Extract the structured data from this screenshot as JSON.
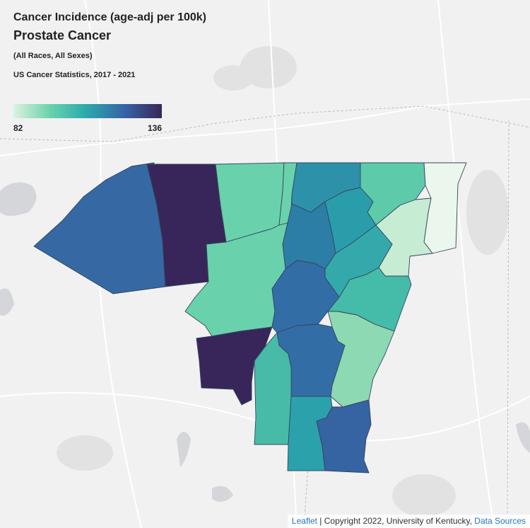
{
  "title": {
    "line1": "Cancer Incidence (age-adj per 100k)",
    "line2": "Prostate Cancer",
    "line3": "(All Races, All Sexes)",
    "line4": "US Cancer Statistics, 2017 - 2021"
  },
  "legend": {
    "min": "82",
    "max": "136",
    "colors": [
      "#dcf2e1",
      "#69d2ac",
      "#2aa7ac",
      "#3763a5",
      "#38265a"
    ]
  },
  "attribution": {
    "leaflet": "Leaflet",
    "separator": " | ",
    "copyright": "Copyright 2022, University of Kentucky, ",
    "sources": "Data Sources"
  },
  "counties": [
    {
      "id": "c01",
      "color": "#38265a"
    },
    {
      "id": "c02",
      "color": "#3669a3"
    },
    {
      "id": "c03",
      "color": "#69d2ac"
    },
    {
      "id": "c04",
      "color": "#69d2ac"
    },
    {
      "id": "c05",
      "color": "#69d2ac"
    },
    {
      "id": "c06",
      "color": "#2c91a9"
    },
    {
      "id": "c07",
      "color": "#5dcaaa"
    },
    {
      "id": "c08",
      "color": "#ebf7ec"
    },
    {
      "id": "c09",
      "color": "#2c7ea7"
    },
    {
      "id": "c10",
      "color": "#2a9dab"
    },
    {
      "id": "c11",
      "color": "#c6ecd3"
    },
    {
      "id": "c12",
      "color": "#34a9ab"
    },
    {
      "id": "c13",
      "color": "#38265a"
    },
    {
      "id": "c14",
      "color": "#336da6"
    },
    {
      "id": "c15",
      "color": "#45bba9"
    },
    {
      "id": "c16",
      "color": "#336da6"
    },
    {
      "id": "c17",
      "color": "#8dd9b3"
    },
    {
      "id": "c18",
      "color": "#48bba8"
    },
    {
      "id": "c19",
      "color": "#2ba2ab"
    },
    {
      "id": "c20",
      "color": "#3663a1"
    }
  ]
}
